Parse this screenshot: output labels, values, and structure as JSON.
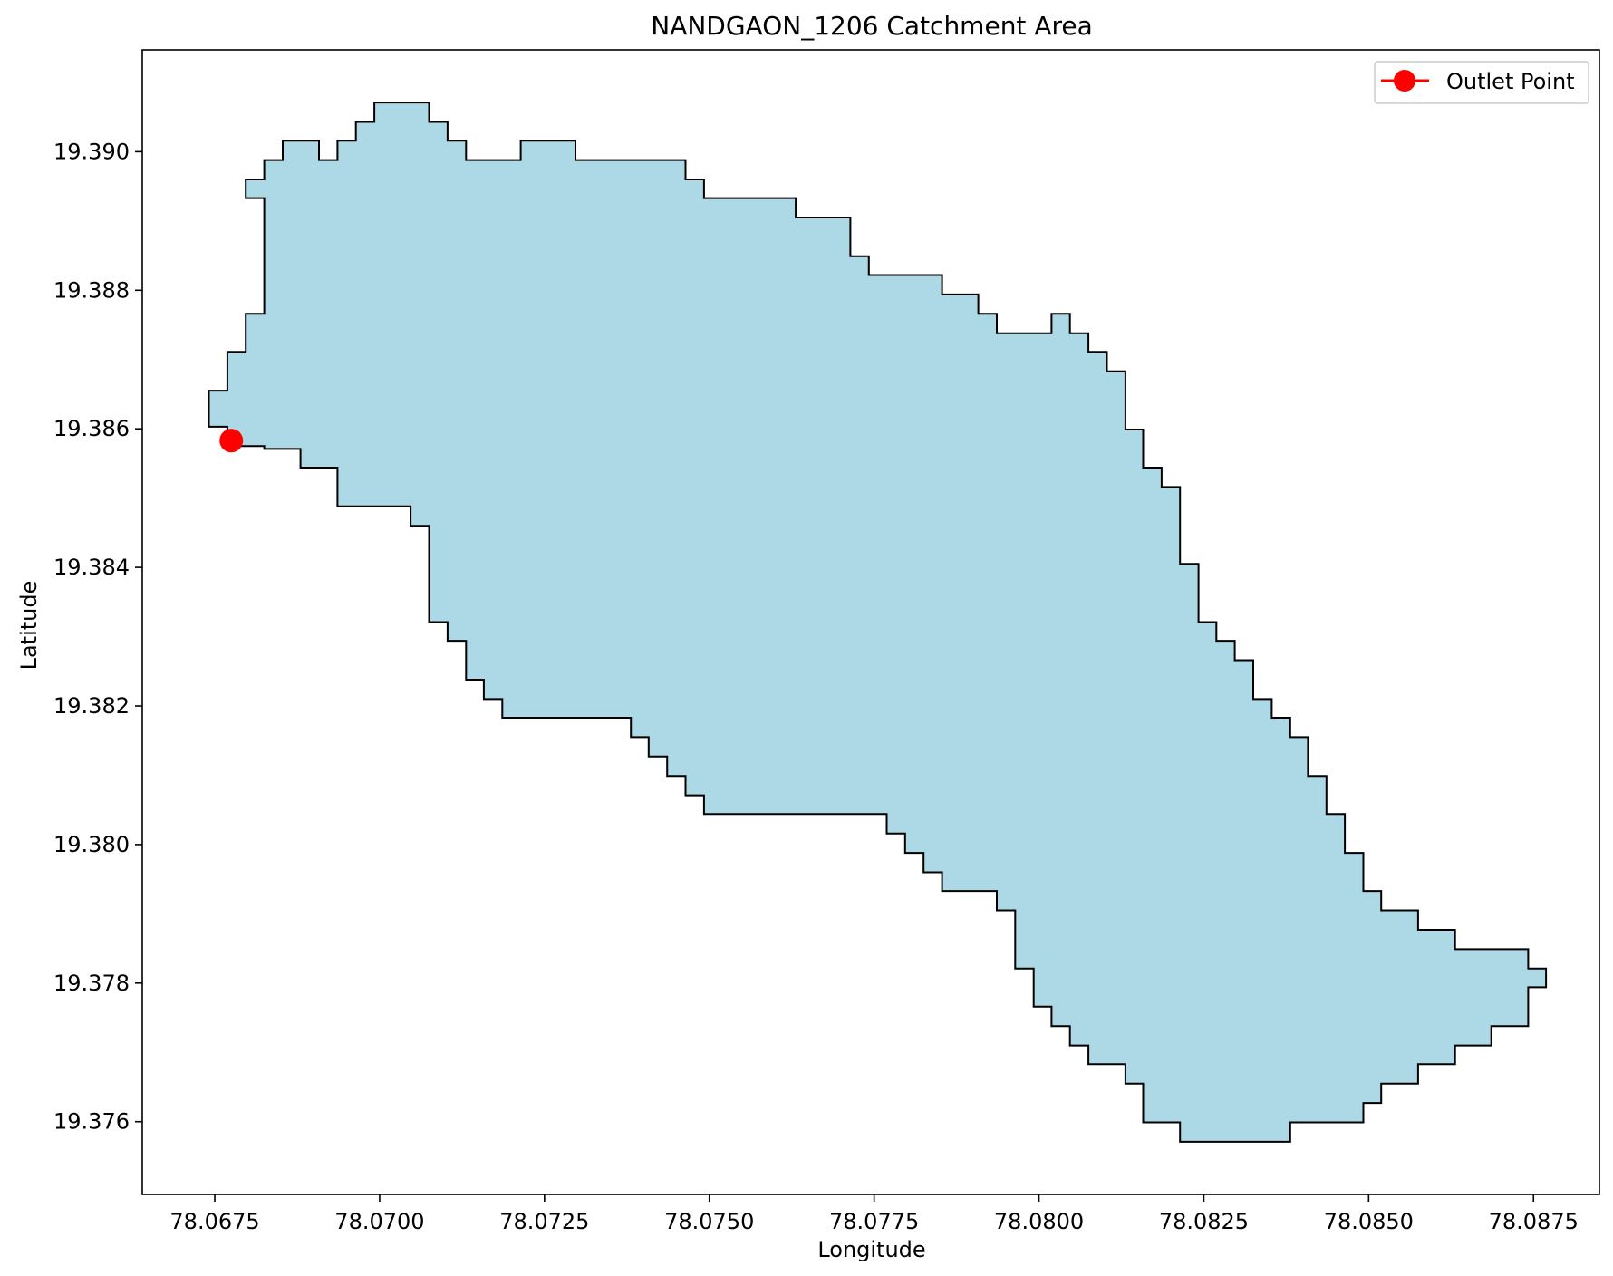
{
  "chart_data": {
    "type": "map-polygon",
    "title": "NANDGAON_1206 Catchment Area",
    "xlabel": "Longitude",
    "ylabel": "Latitude",
    "xlim": [
      78.0664,
      78.0885
    ],
    "ylim": [
      19.37495,
      19.39147
    ],
    "x_ticks": [
      78.0675,
      78.07,
      78.0725,
      78.075,
      78.0775,
      78.08,
      78.0825,
      78.085,
      78.0875
    ],
    "x_tick_labels": [
      "78.0675",
      "78.0700",
      "78.0725",
      "78.0750",
      "78.0775",
      "78.0800",
      "78.0825",
      "78.0850",
      "78.0875"
    ],
    "y_ticks": [
      19.376,
      19.378,
      19.38,
      19.382,
      19.384,
      19.386,
      19.388,
      19.39
    ],
    "y_tick_labels": [
      "19.376",
      "19.378",
      "19.380",
      "19.382",
      "19.384",
      "19.386",
      "19.388",
      "19.390"
    ],
    "grid": false,
    "legend": {
      "placement": "upper-right",
      "entries": [
        {
          "label": "Outlet Point",
          "color": "#ff0000"
        }
      ]
    },
    "catchment": {
      "fill_color": "#add8e6",
      "edge_color": "#000000",
      "boundary": [
        [
          78.06741,
          19.38603
        ],
        [
          78.06741,
          19.38655
        ],
        [
          78.06769,
          19.38655
        ],
        [
          78.06769,
          19.38711
        ],
        [
          78.06797,
          19.38711
        ],
        [
          78.06797,
          19.38766
        ],
        [
          78.06825,
          19.38766
        ],
        [
          78.06825,
          19.38933
        ],
        [
          78.06797,
          19.38933
        ],
        [
          78.06797,
          19.3896
        ],
        [
          78.06825,
          19.3896
        ],
        [
          78.06825,
          19.38988
        ],
        [
          78.06853,
          19.38988
        ],
        [
          78.06853,
          19.39016
        ],
        [
          78.06908,
          19.39016
        ],
        [
          78.06908,
          19.38988
        ],
        [
          78.06936,
          19.38988
        ],
        [
          78.06936,
          19.39016
        ],
        [
          78.06964,
          19.39016
        ],
        [
          78.06964,
          19.39043
        ],
        [
          78.06992,
          19.39043
        ],
        [
          78.06992,
          19.39071
        ],
        [
          78.07075,
          19.39071
        ],
        [
          78.07075,
          19.39043
        ],
        [
          78.07103,
          19.39043
        ],
        [
          78.07103,
          19.39016
        ],
        [
          78.07131,
          19.39016
        ],
        [
          78.07131,
          19.38988
        ],
        [
          78.07214,
          19.38988
        ],
        [
          78.07214,
          19.39016
        ],
        [
          78.07297,
          19.39016
        ],
        [
          78.07297,
          19.38988
        ],
        [
          78.07464,
          19.38988
        ],
        [
          78.07464,
          19.3896
        ],
        [
          78.07492,
          19.3896
        ],
        [
          78.07492,
          19.38933
        ],
        [
          78.07631,
          19.38933
        ],
        [
          78.07631,
          19.38905
        ],
        [
          78.07714,
          19.38905
        ],
        [
          78.07714,
          19.38849
        ],
        [
          78.07742,
          19.38849
        ],
        [
          78.07742,
          19.38822
        ],
        [
          78.07853,
          19.38822
        ],
        [
          78.07853,
          19.38794
        ],
        [
          78.07908,
          19.38794
        ],
        [
          78.07908,
          19.38766
        ],
        [
          78.07936,
          19.38766
        ],
        [
          78.07936,
          19.38738
        ],
        [
          78.08019,
          19.38738
        ],
        [
          78.08019,
          19.38766
        ],
        [
          78.08047,
          19.38766
        ],
        [
          78.08047,
          19.38738
        ],
        [
          78.08075,
          19.38738
        ],
        [
          78.08075,
          19.38711
        ],
        [
          78.08103,
          19.38711
        ],
        [
          78.08103,
          19.38683
        ],
        [
          78.08131,
          19.38683
        ],
        [
          78.08131,
          19.38599
        ],
        [
          78.08158,
          19.38599
        ],
        [
          78.08158,
          19.38544
        ],
        [
          78.08186,
          19.38544
        ],
        [
          78.08186,
          19.38516
        ],
        [
          78.08214,
          19.38516
        ],
        [
          78.08214,
          19.38405
        ],
        [
          78.08242,
          19.38405
        ],
        [
          78.08242,
          19.38321
        ],
        [
          78.08269,
          19.38321
        ],
        [
          78.08269,
          19.38294
        ],
        [
          78.08297,
          19.38294
        ],
        [
          78.08297,
          19.38266
        ],
        [
          78.08325,
          19.38266
        ],
        [
          78.08325,
          19.3821
        ],
        [
          78.08353,
          19.3821
        ],
        [
          78.08353,
          19.38183
        ],
        [
          78.08381,
          19.38183
        ],
        [
          78.08381,
          19.38155
        ],
        [
          78.08408,
          19.38155
        ],
        [
          78.08408,
          19.38099
        ],
        [
          78.08436,
          19.38099
        ],
        [
          78.08436,
          19.38044
        ],
        [
          78.08464,
          19.38044
        ],
        [
          78.08464,
          19.37988
        ],
        [
          78.08492,
          19.37988
        ],
        [
          78.08492,
          19.37933
        ],
        [
          78.08519,
          19.37933
        ],
        [
          78.08519,
          19.37905
        ],
        [
          78.08575,
          19.37905
        ],
        [
          78.08575,
          19.37877
        ],
        [
          78.08631,
          19.37877
        ],
        [
          78.08631,
          19.37849
        ],
        [
          78.08742,
          19.37849
        ],
        [
          78.08742,
          19.37821
        ],
        [
          78.08769,
          19.37821
        ],
        [
          78.08769,
          19.37794
        ],
        [
          78.08742,
          19.37794
        ],
        [
          78.08742,
          19.37738
        ],
        [
          78.08686,
          19.37738
        ],
        [
          78.08686,
          19.3771
        ],
        [
          78.08631,
          19.3771
        ],
        [
          78.08631,
          19.37683
        ],
        [
          78.08575,
          19.37683
        ],
        [
          78.08575,
          19.37655
        ],
        [
          78.08519,
          19.37655
        ],
        [
          78.08519,
          19.37627
        ],
        [
          78.08492,
          19.37627
        ],
        [
          78.08492,
          19.37599
        ],
        [
          78.08381,
          19.37599
        ],
        [
          78.08381,
          19.37571
        ],
        [
          78.08214,
          19.37571
        ],
        [
          78.08214,
          19.37599
        ],
        [
          78.08158,
          19.37599
        ],
        [
          78.08158,
          19.37655
        ],
        [
          78.08131,
          19.37655
        ],
        [
          78.08131,
          19.37683
        ],
        [
          78.08075,
          19.37683
        ],
        [
          78.08075,
          19.3771
        ],
        [
          78.08047,
          19.3771
        ],
        [
          78.08047,
          19.37738
        ],
        [
          78.08019,
          19.37738
        ],
        [
          78.08019,
          19.37766
        ],
        [
          78.07992,
          19.37766
        ],
        [
          78.07992,
          19.37821
        ],
        [
          78.07964,
          19.37821
        ],
        [
          78.07964,
          19.37905
        ],
        [
          78.07936,
          19.37905
        ],
        [
          78.07936,
          19.37933
        ],
        [
          78.07853,
          19.37933
        ],
        [
          78.07853,
          19.3796
        ],
        [
          78.07825,
          19.3796
        ],
        [
          78.07825,
          19.37988
        ],
        [
          78.07797,
          19.37988
        ],
        [
          78.07797,
          19.38016
        ],
        [
          78.07769,
          19.38016
        ],
        [
          78.07769,
          19.38044
        ],
        [
          78.07492,
          19.38044
        ],
        [
          78.07492,
          19.38071
        ],
        [
          78.07464,
          19.38071
        ],
        [
          78.07464,
          19.38099
        ],
        [
          78.07436,
          19.38099
        ],
        [
          78.07436,
          19.38127
        ],
        [
          78.07408,
          19.38127
        ],
        [
          78.07408,
          19.38155
        ],
        [
          78.07381,
          19.38155
        ],
        [
          78.07381,
          19.38183
        ],
        [
          78.07186,
          19.38183
        ],
        [
          78.07186,
          19.3821
        ],
        [
          78.07158,
          19.3821
        ],
        [
          78.07158,
          19.38238
        ],
        [
          78.07131,
          19.38238
        ],
        [
          78.07131,
          19.38294
        ],
        [
          78.07103,
          19.38294
        ],
        [
          78.07103,
          19.38321
        ],
        [
          78.07075,
          19.38321
        ],
        [
          78.07075,
          19.3846
        ],
        [
          78.07047,
          19.3846
        ],
        [
          78.07047,
          19.38488
        ],
        [
          78.06936,
          19.38488
        ],
        [
          78.06936,
          19.38544
        ],
        [
          78.0688,
          19.38544
        ],
        [
          78.0688,
          19.38571
        ],
        [
          78.06825,
          19.38571
        ],
        [
          78.06825,
          19.38575
        ],
        [
          78.06769,
          19.38575
        ],
        [
          78.06769,
          19.38603
        ]
      ]
    },
    "outlet_point": {
      "label": "Outlet Point",
      "lon": 78.06775,
      "lat": 19.38583,
      "color": "#ff0000"
    }
  }
}
